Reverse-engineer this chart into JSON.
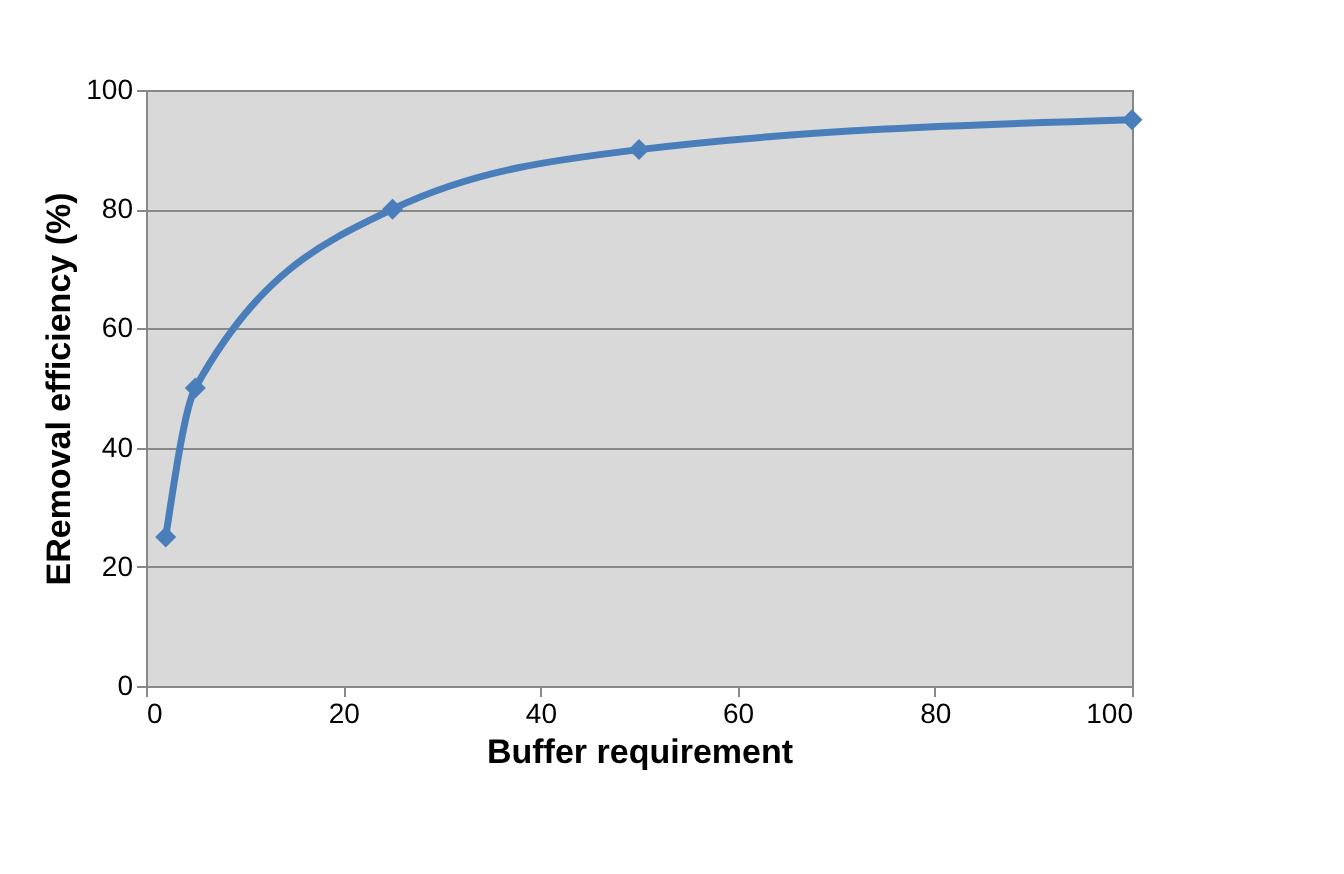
{
  "chart_data": {
    "type": "line",
    "xlabel": "Buffer requirement",
    "ylabel": "ERemoval efficiency (%)",
    "x": [
      2,
      5,
      25,
      50,
      100
    ],
    "series": [
      {
        "color": "#4a7ebb",
        "values": [
          25,
          50,
          80,
          90,
          95
        ]
      }
    ],
    "xlim": [
      0,
      100
    ],
    "xticks": [
      0,
      20,
      40,
      60,
      80,
      100
    ],
    "ylim": [
      0,
      100
    ],
    "yticks": [
      0,
      20,
      40,
      60,
      80,
      100
    ],
    "grid": "y",
    "marker": "diamond",
    "line_style": "solid"
  }
}
